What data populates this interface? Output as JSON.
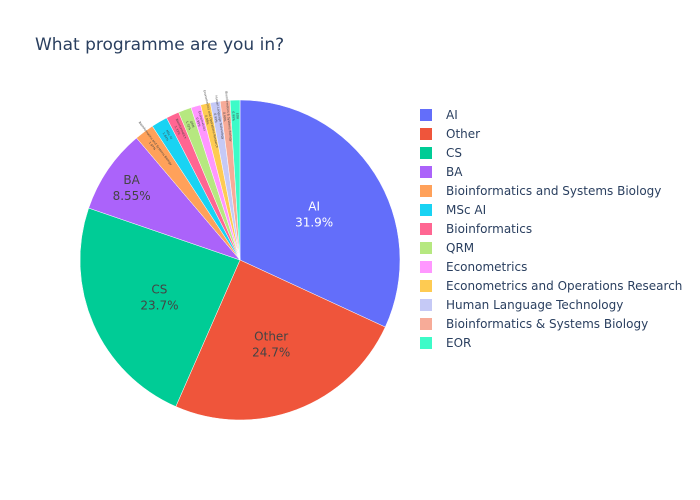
{
  "chart_data": {
    "type": "pie",
    "title": "What programme are you in?",
    "legend_position": "right",
    "slices": [
      {
        "label": "AI",
        "value": 31.9,
        "color": "#636efa",
        "text": "31.9%"
      },
      {
        "label": "Other",
        "value": 24.7,
        "color": "#ef553b",
        "text": "24.7%"
      },
      {
        "label": "CS",
        "value": 23.7,
        "color": "#00cc96",
        "text": "23.7%"
      },
      {
        "label": "BA",
        "value": 8.55,
        "color": "#ab63fa",
        "text": "8.55%"
      },
      {
        "label": "Bioinformatics and Systems Biology",
        "value": 1.97,
        "color": "#ffa15a",
        "text": "1.97%"
      },
      {
        "label": "MSc AI",
        "value": 1.64,
        "color": "#19d3f3",
        "text": "1.64%"
      },
      {
        "label": "Bioinformatics",
        "value": 1.32,
        "color": "#ff6692",
        "text": "1.32%"
      },
      {
        "label": "QRM",
        "value": 1.32,
        "color": "#b6e880",
        "text": "1.32%"
      },
      {
        "label": "Econometrics",
        "value": 0.99,
        "color": "#ff97ff",
        "text": "0.99%"
      },
      {
        "label": "Econometrics and Operations Research",
        "value": 0.99,
        "color": "#fecb52",
        "text": "0.99%"
      },
      {
        "label": "Human Language Technology",
        "value": 0.99,
        "color": "#c5c9f6",
        "text": "0.99%"
      },
      {
        "label": "Bioinformatics & Systems Biology",
        "value": 0.99,
        "color": "#f7ab98",
        "text": "0.99%"
      },
      {
        "label": "EOR",
        "value": 0.99,
        "color": "#3dfbc8",
        "text": "0.99%"
      }
    ]
  }
}
